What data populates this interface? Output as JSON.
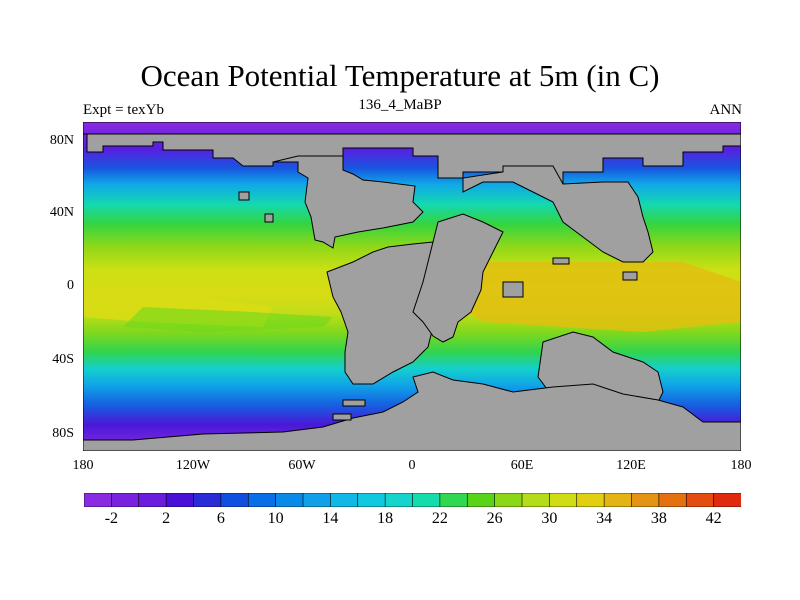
{
  "header": {
    "title": "Ocean Potential Temperature at 5m (in C)",
    "left_label": "Expt = texYb",
    "center_label": "136_4_MaBP",
    "right_label": "ANN"
  },
  "map": {
    "type": "filled-contour-map",
    "lon_range": [
      -180,
      180
    ],
    "lat_range": [
      -90,
      90
    ],
    "land_color": "#a0a0a0",
    "y_ticks": [
      {
        "lat": 80,
        "label": "80N"
      },
      {
        "lat": 40,
        "label": "40N"
      },
      {
        "lat": 0,
        "label": "0"
      },
      {
        "lat": -40,
        "label": "40S"
      },
      {
        "lat": -80,
        "label": "80S"
      }
    ],
    "x_ticks": [
      {
        "lon": -180,
        "label": "180"
      },
      {
        "lon": -120,
        "label": "120W"
      },
      {
        "lon": -60,
        "label": "60W"
      },
      {
        "lon": 0,
        "label": "0"
      },
      {
        "lon": 60,
        "label": "60E"
      },
      {
        "lon": 120,
        "label": "120E"
      },
      {
        "lon": 180,
        "label": "180"
      }
    ]
  },
  "colorbar": {
    "levels": [
      -4,
      -2,
      0,
      2,
      4,
      6,
      8,
      10,
      12,
      14,
      16,
      18,
      20,
      22,
      24,
      26,
      28,
      30,
      32,
      34,
      36,
      38,
      40,
      42,
      44
    ],
    "colors": [
      "#8a2be2",
      "#7a20e0",
      "#6a1ddc",
      "#4a10d8",
      "#2a2cd8",
      "#1050e0",
      "#0a6ee8",
      "#0a8ae8",
      "#10a0e8",
      "#10b8e8",
      "#10c8e0",
      "#14d4cc",
      "#14dcaa",
      "#30d850",
      "#58d418",
      "#8cd818",
      "#b4dc18",
      "#d0dc14",
      "#e0d010",
      "#e4b414",
      "#e49414",
      "#e47010",
      "#e44c10",
      "#e02a10"
    ],
    "tick_labels": [
      {
        "value": -2,
        "label": "-2"
      },
      {
        "value": 2,
        "label": "2"
      },
      {
        "value": 6,
        "label": "6"
      },
      {
        "value": 10,
        "label": "10"
      },
      {
        "value": 14,
        "label": "14"
      },
      {
        "value": 18,
        "label": "18"
      },
      {
        "value": 22,
        "label": "22"
      },
      {
        "value": 26,
        "label": "26"
      },
      {
        "value": 30,
        "label": "30"
      },
      {
        "value": 34,
        "label": "34"
      },
      {
        "value": 38,
        "label": "38"
      },
      {
        "value": 42,
        "label": "42"
      }
    ]
  }
}
